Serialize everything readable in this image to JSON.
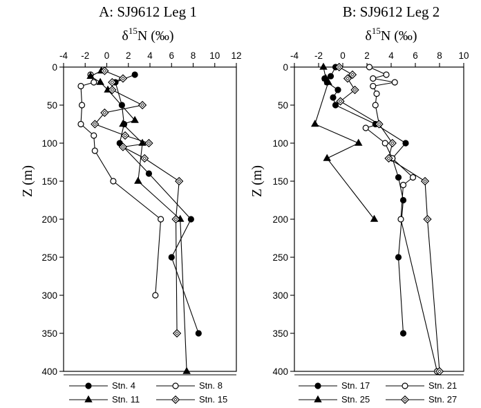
{
  "chart_data": [
    {
      "type": "line",
      "title": "A:  SJ9612 Leg 1",
      "xlabel_base": "δ",
      "xlabel_sup": "15",
      "xlabel_rest": "N (‰)",
      "ylabel": "Z (m)",
      "xlim": [
        -4,
        12
      ],
      "ylim": [
        0,
        400
      ],
      "xticks": [
        -4,
        -2,
        0,
        2,
        4,
        6,
        8,
        10,
        12
      ],
      "yticks": [
        0,
        50,
        100,
        150,
        200,
        250,
        300,
        350,
        400
      ],
      "legend_position": "bottom",
      "series": [
        {
          "name": "Stn. 4",
          "marker": "circle-filled",
          "x": [
            2.6,
            0.8,
            1.4,
            1.6,
            1.2,
            3.9,
            7.8,
            6.0,
            8.5
          ],
          "y": [
            10,
            20,
            50,
            75,
            100,
            140,
            200,
            250,
            350
          ]
        },
        {
          "name": "Stn. 8",
          "marker": "circle-open",
          "x": [
            -1.5,
            -1.2,
            -2.4,
            -2.3,
            -2.4,
            -1.2,
            -1.1,
            0.6,
            5.0,
            4.5
          ],
          "y": [
            10,
            20,
            25,
            50,
            75,
            90,
            110,
            150,
            200,
            300
          ]
        },
        {
          "name": "Stn. 11",
          "marker": "triangle-filled",
          "x": [
            -0.5,
            -1.5,
            -0.6,
            0.1,
            2.6,
            1.5,
            3.3,
            2.9,
            6.8,
            7.4
          ],
          "y": [
            5,
            12,
            20,
            30,
            70,
            75,
            100,
            150,
            200,
            400
          ]
        },
        {
          "name": "Stn. 15",
          "marker": "diamond-open",
          "x": [
            -0.2,
            1.5,
            0.5,
            0.5,
            3.3,
            -0.2,
            -1.1,
            1.7,
            3.9,
            1.5,
            3.5,
            6.7,
            6.4,
            6.5
          ],
          "y": [
            5,
            15,
            20,
            30,
            50,
            60,
            75,
            90,
            100,
            105,
            120,
            150,
            200,
            350
          ]
        }
      ]
    },
    {
      "type": "line",
      "title": "B:  SJ9612 Leg 2",
      "xlabel_base": "δ",
      "xlabel_sup": "15",
      "xlabel_rest": "N (‰)",
      "ylabel": "Z (m)",
      "xlim": [
        -4,
        10
      ],
      "ylim": [
        0,
        400
      ],
      "xticks": [
        -4,
        -2,
        0,
        2,
        4,
        6,
        8,
        10
      ],
      "yticks": [
        0,
        50,
        100,
        150,
        200,
        250,
        300,
        350,
        400
      ],
      "legend_position": "bottom",
      "series": [
        {
          "name": "Stn. 17",
          "marker": "circle-filled",
          "x": [
            -0.6,
            -1.0,
            -1.5,
            -1.3,
            -0.4,
            -0.8,
            -0.6,
            2.7,
            5.2,
            4.1,
            4.6,
            5.0,
            4.6,
            5.0
          ],
          "y": [
            0,
            12,
            15,
            20,
            30,
            40,
            50,
            75,
            100,
            120,
            145,
            175,
            250,
            350
          ]
        },
        {
          "name": "Stn. 21",
          "marker": "circle-open",
          "x": [
            2.2,
            3.6,
            2.5,
            4.3,
            2.5,
            2.8,
            2.7,
            3.0,
            1.9,
            3.5,
            4.1,
            5.8,
            5.0,
            4.8,
            7.8
          ],
          "y": [
            0,
            10,
            15,
            20,
            25,
            35,
            50,
            75,
            80,
            100,
            120,
            145,
            155,
            200,
            400
          ]
        },
        {
          "name": "Stn. 25",
          "marker": "triangle-filled",
          "x": [
            -1.6,
            -1.4,
            -1.2,
            -2.3,
            1.3,
            -1.3,
            2.6
          ],
          "y": [
            0,
            15,
            20,
            75,
            100,
            120,
            200
          ]
        },
        {
          "name": "Stn. 27",
          "marker": "diamond-open",
          "x": [
            -0.3,
            0.8,
            0.4,
            1.0,
            -0.2,
            3.0,
            4.1,
            3.8,
            6.8,
            7.0,
            8.0
          ],
          "y": [
            0,
            10,
            15,
            30,
            45,
            75,
            100,
            120,
            150,
            200,
            400
          ]
        }
      ]
    }
  ]
}
